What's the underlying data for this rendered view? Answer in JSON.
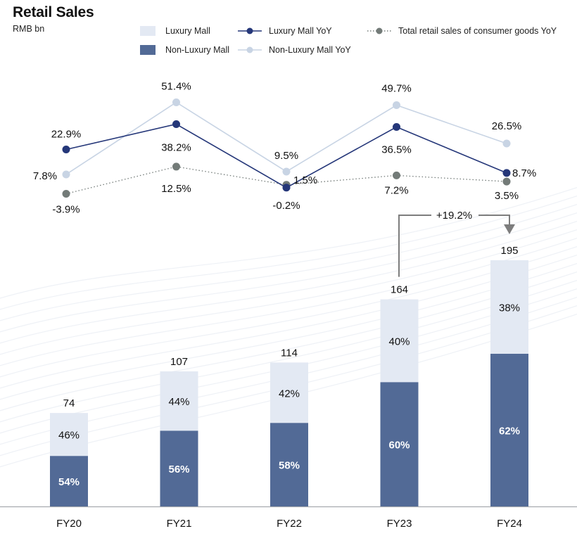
{
  "title": "Retail Sales",
  "unit": "RMB bn",
  "legend": {
    "luxury_mall": "Luxury Mall",
    "non_luxury_mall": "Non-Luxury Mall",
    "luxury_mall_yoy": "Luxury Mall YoY",
    "non_luxury_mall_yoy": "Non-Luxury Mall YoY",
    "total_yoy": "Total retail sales of consumer goods YoY"
  },
  "colors": {
    "luxury_mall": "#e3e9f3",
    "non_luxury_mall": "#526a96",
    "luxury_yoy": "#253779",
    "non_luxury_yoy": "#c8d4e4",
    "total_yoy": "#737b78",
    "axis": "#a7aaaf",
    "bracket": "#7d7d7d"
  },
  "chart_data": {
    "type": "bar",
    "categories": [
      "FY20",
      "FY21",
      "FY22",
      "FY23",
      "FY24"
    ],
    "totals": [
      74,
      107,
      114,
      164,
      195
    ],
    "series": [
      {
        "name": "Non-Luxury Mall",
        "shares": [
          54,
          56,
          58,
          60,
          62
        ],
        "labels": [
          "54%",
          "56%",
          "58%",
          "60%",
          "62%"
        ]
      },
      {
        "name": "Luxury Mall",
        "shares": [
          46,
          44,
          42,
          40,
          38
        ],
        "labels": [
          "46%",
          "44%",
          "42%",
          "40%",
          "38%"
        ]
      }
    ],
    "line_series": [
      {
        "name": "Luxury Mall YoY",
        "values": [
          22.9,
          38.2,
          -0.2,
          36.5,
          8.7
        ],
        "labels": [
          "22.9%",
          "38.2%",
          "-0.2%",
          "36.5%",
          "8.7%"
        ]
      },
      {
        "name": "Non-Luxury Mall YoY",
        "values": [
          7.8,
          51.4,
          9.5,
          49.7,
          26.5
        ],
        "labels": [
          "7.8%",
          "51.4%",
          "9.5%",
          "49.7%",
          "26.5%"
        ]
      },
      {
        "name": "Total retail sales of consumer goods YoY",
        "values": [
          -3.9,
          12.5,
          1.5,
          7.2,
          3.5
        ],
        "labels": [
          "-3.9%",
          "12.5%",
          "1.5%",
          "7.2%",
          "3.5%"
        ]
      }
    ],
    "annotation": {
      "text": "+19.2%",
      "from": "FY23",
      "to": "FY24"
    },
    "ylim": [
      0,
      200
    ],
    "grid": false,
    "legend_position": "top"
  }
}
